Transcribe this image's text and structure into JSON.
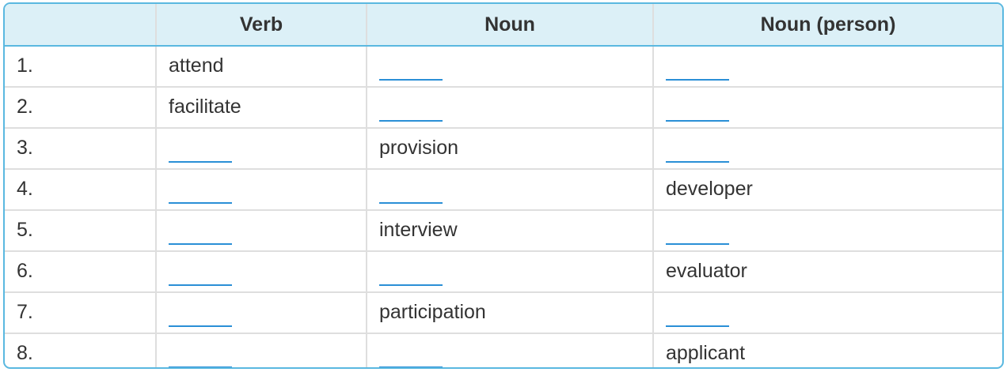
{
  "headers": [
    "",
    "Verb",
    "Noun",
    "Noun (person)"
  ],
  "blank_color": "#2a8fd6",
  "border_color": "#5ab8e0",
  "header_bg": "#dcf0f7",
  "rows": [
    {
      "num": "1.",
      "verb": "attend",
      "noun": null,
      "person": null
    },
    {
      "num": "2.",
      "verb": "facilitate",
      "noun": null,
      "person": null
    },
    {
      "num": "3.",
      "verb": null,
      "noun": "provision",
      "person": null
    },
    {
      "num": "4.",
      "verb": null,
      "noun": null,
      "person": "developer"
    },
    {
      "num": "5.",
      "verb": null,
      "noun": "interview",
      "person": null
    },
    {
      "num": "6.",
      "verb": null,
      "noun": null,
      "person": "evaluator"
    },
    {
      "num": "7.",
      "verb": null,
      "noun": "participation",
      "person": null
    },
    {
      "num": "8.",
      "verb": null,
      "noun": null,
      "person": "applicant"
    }
  ]
}
